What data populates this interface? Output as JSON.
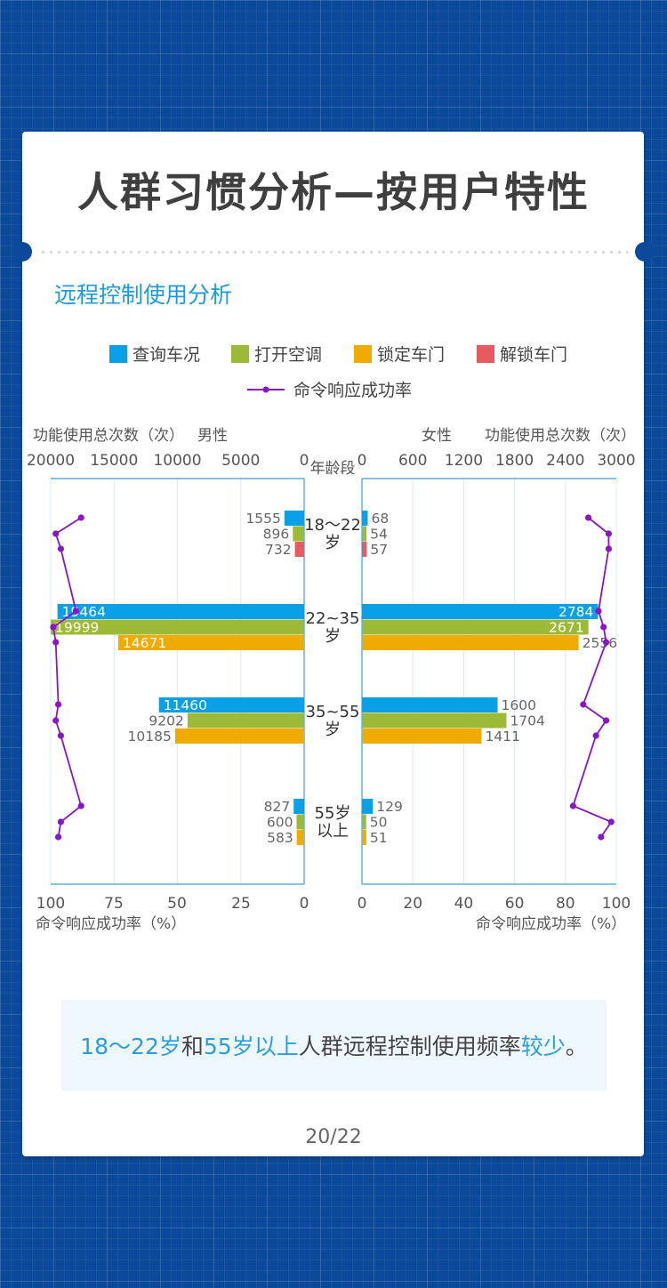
{
  "title": "人群习惯分析—按用户特性",
  "section_title": "远程控制使用分析",
  "note": {
    "p1": "18～22岁",
    "p2": "和",
    "p3": "55岁以上",
    "p4": "人群远程控制使用频率",
    "p5": "较少",
    "p6": "。"
  },
  "page_number": "20/22",
  "chart_data": {
    "type": "bar",
    "legend": [
      "查询车况",
      "打开空调",
      "锁定车门",
      "解锁车门",
      "命令响应成功率"
    ],
    "colors": [
      "#0aa0e8",
      "#9cba38",
      "#f0ab00",
      "#e95a60",
      "#8a14c8"
    ],
    "categories": [
      "18～22岁",
      "22~35岁",
      "35~55岁",
      "55岁以上"
    ],
    "center_label": "年龄段",
    "left": {
      "label": "男性",
      "axis_title": "功能使用总次数（次）",
      "xlim": [
        0,
        20000
      ],
      "ticks": [
        20000,
        15000,
        10000,
        5000,
        0
      ],
      "series": [
        {
          "name": "查询车况",
          "values": [
            1555,
            19464,
            11460,
            827
          ]
        },
        {
          "name": "打开空调",
          "values": [
            896,
            19999,
            9202,
            600
          ]
        },
        {
          "name": "锁定车门",
          "values": [
            null,
            14671,
            10185,
            583
          ]
        },
        {
          "name": "解锁车门",
          "values": [
            732,
            null,
            null,
            null
          ]
        }
      ],
      "rate": [
        88,
        98,
        96,
        90,
        99,
        98,
        97,
        98,
        96,
        88,
        96,
        97
      ]
    },
    "right": {
      "label": "女性",
      "axis_title": "功能使用总次数（次）",
      "xlim": [
        0,
        3000
      ],
      "ticks": [
        0,
        600,
        1200,
        1800,
        2400,
        3000
      ],
      "series": [
        {
          "name": "查询车况",
          "values": [
            68,
            2784,
            1600,
            129
          ]
        },
        {
          "name": "打开空调",
          "values": [
            54,
            2671,
            1704,
            50
          ]
        },
        {
          "name": "锁定车门",
          "values": [
            null,
            2556,
            1411,
            51
          ]
        },
        {
          "name": "解锁车门",
          "values": [
            57,
            null,
            null,
            null
          ]
        }
      ],
      "rate": [
        89,
        97,
        97,
        93,
        95,
        96,
        87,
        96,
        92,
        83,
        98,
        94
      ]
    },
    "rate_axis": {
      "label": "命令响应成功率（%）",
      "left_ticks": [
        100,
        75,
        50,
        25,
        0
      ],
      "right_ticks": [
        0,
        20,
        40,
        60,
        80,
        100
      ],
      "ylim": [
        0,
        100
      ]
    }
  }
}
